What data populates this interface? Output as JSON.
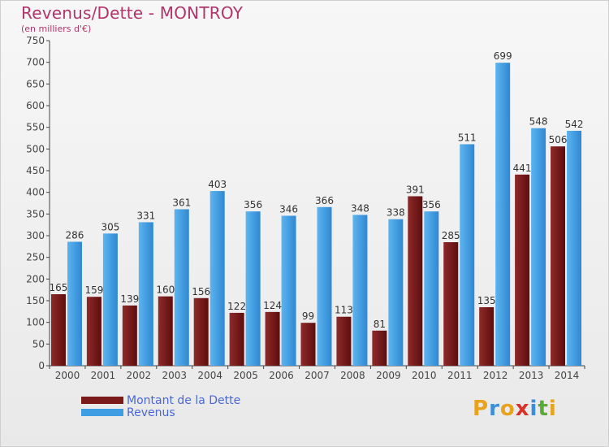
{
  "title": "Revenus/Dette - MONTROY",
  "unit_label": "(en milliers d'€)",
  "colors": {
    "dette": "#7a1a1a",
    "revenus": "#3f9ee3",
    "title": "#b0356a",
    "legend_text": "#4a67d6"
  },
  "legend": [
    {
      "label": "Montant de la Dette",
      "color": "#7a1a1a"
    },
    {
      "label": "Revenus",
      "color": "#3f9ee3"
    }
  ],
  "logo": {
    "text": "Proxiti"
  },
  "chart_data": {
    "type": "bar",
    "title": "Revenus/Dette - MONTROY",
    "ylabel": "(en milliers d'€)",
    "ylim": [
      0,
      750
    ],
    "yticks": [
      0,
      50,
      100,
      150,
      200,
      250,
      300,
      350,
      400,
      450,
      500,
      550,
      600,
      650,
      700,
      750
    ],
    "grid": false,
    "legend_position": "bottom-left",
    "categories": [
      "2000",
      "2001",
      "2002",
      "2003",
      "2004",
      "2005",
      "2006",
      "2007",
      "2008",
      "2009",
      "2010",
      "2011",
      "2012",
      "2013",
      "2014"
    ],
    "series": [
      {
        "name": "Montant de la Dette",
        "values": [
          165,
          159,
          139,
          160,
          156,
          122,
          124,
          99,
          113,
          81,
          391,
          285,
          135,
          441,
          506
        ]
      },
      {
        "name": "Revenus",
        "values": [
          286,
          305,
          331,
          361,
          403,
          356,
          346,
          366,
          348,
          338,
          356,
          511,
          699,
          548,
          542
        ]
      }
    ]
  }
}
